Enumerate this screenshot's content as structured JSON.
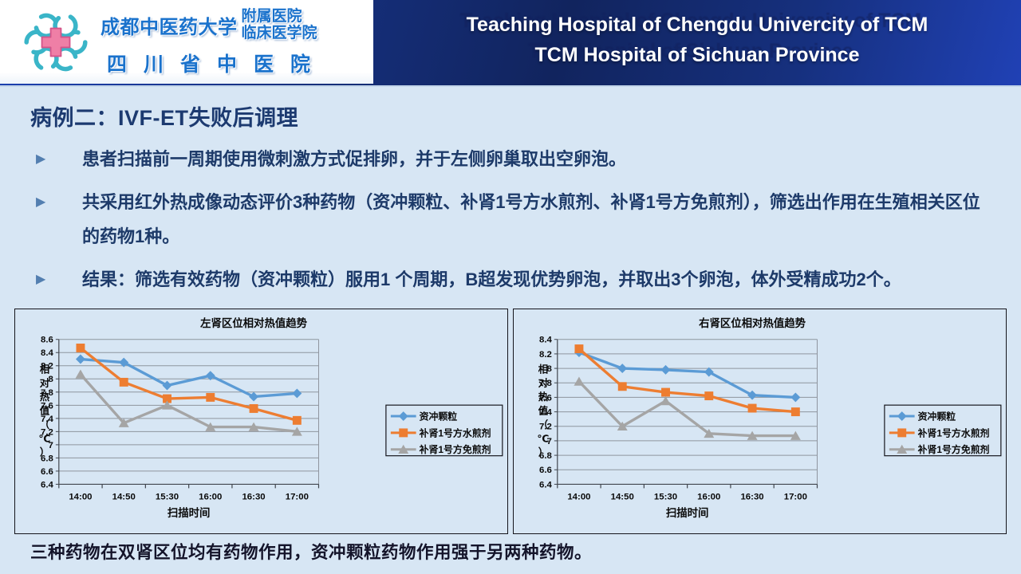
{
  "header": {
    "logo": {
      "university": "成都中医药大学",
      "affiliated": "附属医院",
      "clinical": "临床医学院",
      "hospital": "四川省中医院",
      "flower_color": "#3ab5c8",
      "cross_color": "#ef7fa6"
    },
    "title_line1": "Teaching Hospital of Chengdu Univercity of TCM",
    "title_line2": "TCM Hospital of Sichuan Province"
  },
  "main": {
    "title": "病例二：IVF-ET失败后调理",
    "bullets": [
      "患者扫描前一周期使用微刺激方式促排卵，并于左侧卵巢取出空卵泡。",
      "共采用红外热成像动态评价3种药物（资冲颗粒、补肾1号方水煎剂、补肾1号方免煎剂），筛选出作用在生殖相关区位的药物1种。",
      "结果：筛选有效药物（资冲颗粒）服用1 个周期，B超发现优势卵泡，并取出3个卵泡，体外受精成功2个。"
    ],
    "conclusion": "三种药物在双肾区位均有药物作用，资冲颗粒药物作用强于另两种药物。"
  },
  "chart_data": [
    {
      "type": "line",
      "title": "左肾区位相对热值趋势",
      "xlabel": "扫描时间",
      "ylabel": "相对热值（℃）",
      "categories": [
        "14:00",
        "14:50",
        "15:30",
        "16:00",
        "16:30",
        "17:00"
      ],
      "ylim": [
        6.4,
        8.6
      ],
      "ystep": 0.2,
      "grid": true,
      "legend_position": "right",
      "series": [
        {
          "name": "资冲颗粒",
          "color": "#5B9BD5",
          "marker": "diamond",
          "values": [
            8.3,
            8.25,
            7.9,
            8.05,
            7.73,
            7.78
          ]
        },
        {
          "name": "补肾1号方水煎剂",
          "color": "#ED7D31",
          "marker": "square",
          "values": [
            8.47,
            7.95,
            7.7,
            7.72,
            7.55,
            7.37
          ]
        },
        {
          "name": "补肾1号方免煎剂",
          "color": "#A5A5A5",
          "marker": "triangle",
          "values": [
            8.07,
            7.33,
            7.6,
            7.27,
            7.27,
            7.2
          ]
        }
      ]
    },
    {
      "type": "line",
      "title": "右肾区位相对热值趋势",
      "xlabel": "扫描时间",
      "ylabel": "相对热值（℃）",
      "categories": [
        "14:00",
        "14:50",
        "15:30",
        "16:00",
        "16:30",
        "17:00"
      ],
      "ylim": [
        6.4,
        8.4
      ],
      "ystep": 0.2,
      "grid": true,
      "legend_position": "right",
      "series": [
        {
          "name": "资冲颗粒",
          "color": "#5B9BD5",
          "marker": "diamond",
          "values": [
            8.22,
            8.0,
            7.98,
            7.95,
            7.63,
            7.6
          ]
        },
        {
          "name": "补肾1号方水煎剂",
          "color": "#ED7D31",
          "marker": "square",
          "values": [
            8.27,
            7.75,
            7.67,
            7.62,
            7.45,
            7.4
          ]
        },
        {
          "name": "补肾1号方免煎剂",
          "color": "#A5A5A5",
          "marker": "triangle",
          "values": [
            7.82,
            7.2,
            7.55,
            7.1,
            7.07,
            7.07
          ]
        }
      ]
    }
  ]
}
